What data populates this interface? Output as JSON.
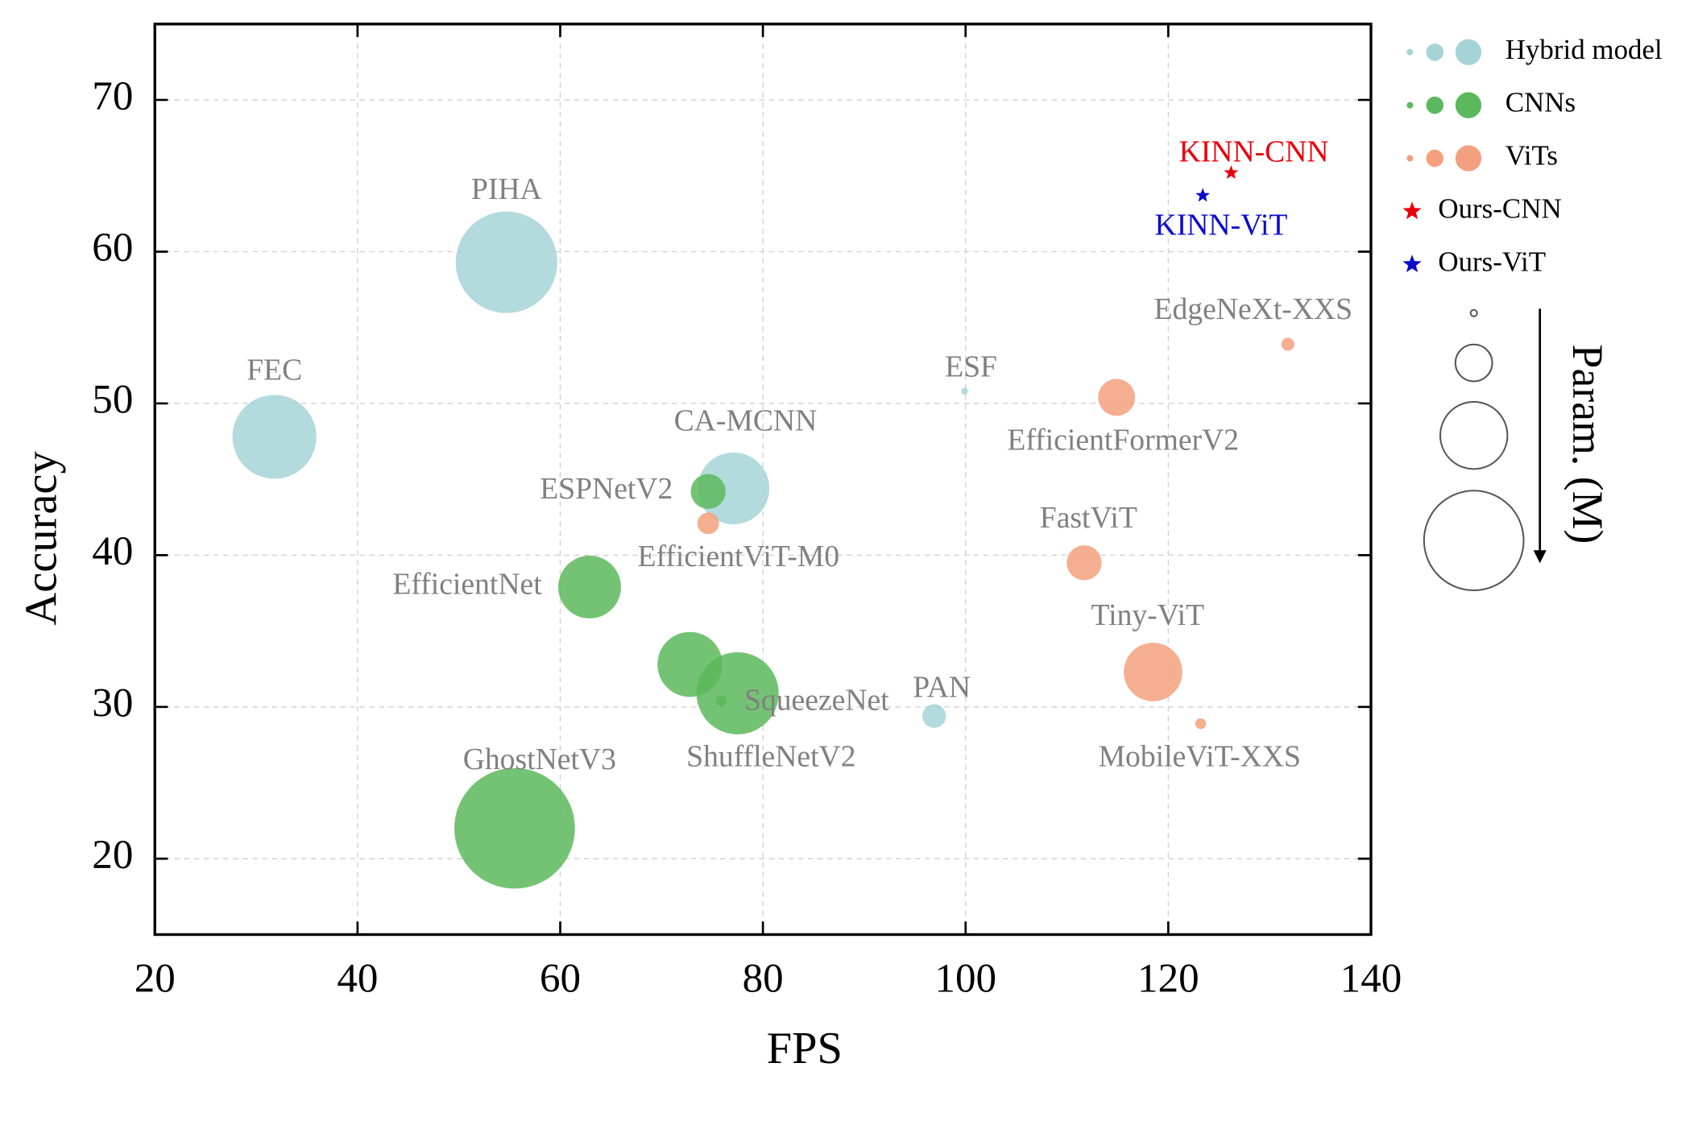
{
  "chart_data": {
    "type": "scatter",
    "xlabel": "FPS",
    "ylabel": "Accuracy",
    "size_label": "Param. (M)",
    "xlim": [
      20,
      140
    ],
    "ylim": [
      15,
      75
    ],
    "xticks": [
      20,
      40,
      60,
      80,
      100,
      120,
      140
    ],
    "yticks": [
      20,
      30,
      40,
      50,
      60,
      70
    ],
    "grid": true,
    "legend": "right",
    "series": [
      {
        "name": "Hybrid model",
        "color": "#a6d3d6",
        "marker": "circle",
        "labels": [
          "PIHA",
          "FEC",
          "CA-MCNN",
          "ESF",
          "PAN"
        ],
        "x": [
          54.7,
          31.8,
          77.1,
          99.9,
          96.9
        ],
        "y": [
          59.3,
          47.8,
          44.4,
          50.8,
          29.4
        ],
        "sizes": [
          22,
          15,
          11,
          0.1,
          1.2
        ]
      },
      {
        "name": "CNNs",
        "color": "#5cb85c",
        "marker": "circle",
        "labels": [
          "ESPNetV2",
          "EfficientNet",
          null,
          "SqueezeNet",
          "ShuffleNetV2",
          "GhostNetV3"
        ],
        "x": [
          74.6,
          62.9,
          72.8,
          75.9,
          77.5,
          55.5
        ],
        "y": [
          44.2,
          37.9,
          32.8,
          30.4,
          30.9,
          22.0
        ],
        "sizes": [
          2.6,
          8.4,
          9,
          0.25,
          14.4,
          31
        ]
      },
      {
        "name": "ViTs",
        "color": "#f4a07e",
        "marker": "circle",
        "labels": [
          "EfficientViT-M0",
          "EfficientFormerV2",
          "EdgeNeXt-XXS",
          "FastViT",
          "Tiny-ViT",
          "MobileViT-XXS"
        ],
        "x": [
          74.6,
          114.9,
          131.8,
          111.7,
          118.5,
          123.2
        ],
        "y": [
          42.1,
          50.4,
          53.9,
          39.5,
          32.3,
          28.9
        ],
        "sizes": [
          1,
          2.9,
          0.36,
          2.6,
          7.3,
          0.25
        ]
      },
      {
        "name": "Ours-CNN",
        "color": "#e8000b",
        "marker": "star",
        "labels": [
          "KINN-CNN"
        ],
        "x": [
          126.2
        ],
        "y": [
          65.2
        ]
      },
      {
        "name": "Ours-ViT",
        "color": "#0a0ad0",
        "marker": "star",
        "labels": [
          "KINN-ViT"
        ],
        "x": [
          123.4
        ],
        "y": [
          63.7
        ]
      }
    ]
  }
}
